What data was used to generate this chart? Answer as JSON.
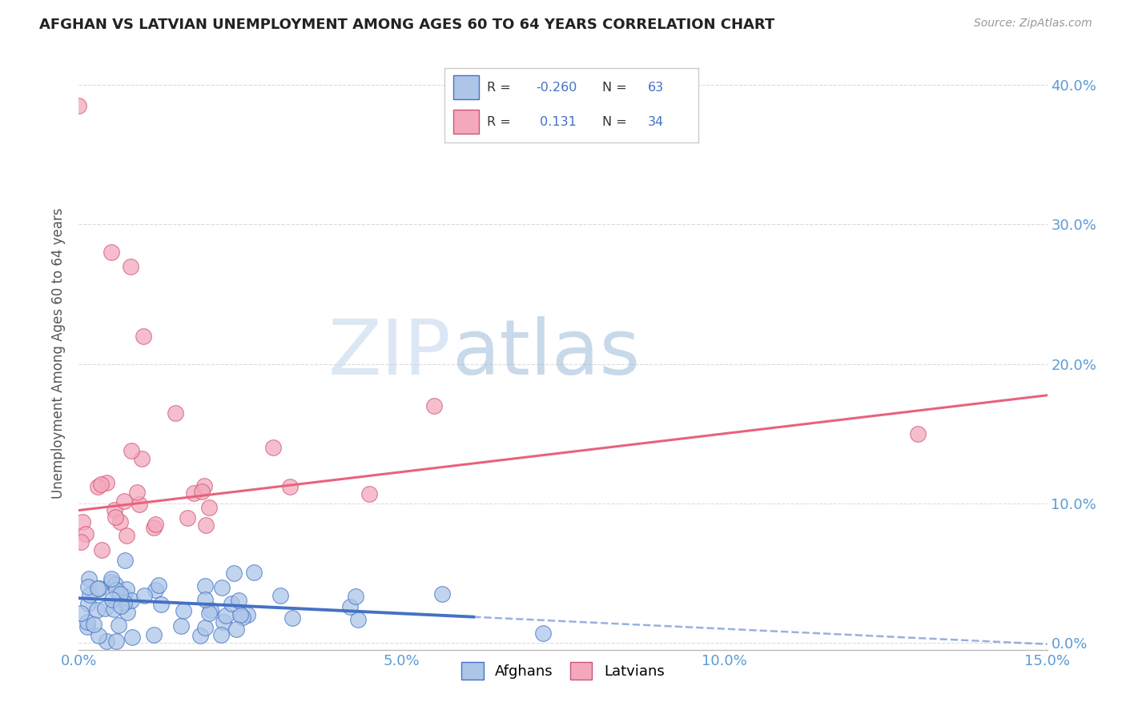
{
  "title": "AFGHAN VS LATVIAN UNEMPLOYMENT AMONG AGES 60 TO 64 YEARS CORRELATION CHART",
  "source": "Source: ZipAtlas.com",
  "ylabel": "Unemployment Among Ages 60 to 64 years",
  "xlim": [
    0.0,
    0.15
  ],
  "ylim": [
    -0.005,
    0.42
  ],
  "xticks": [
    0.0,
    0.05,
    0.1,
    0.15
  ],
  "yticks": [
    0.0,
    0.1,
    0.2,
    0.3,
    0.4
  ],
  "afghan_R": -0.26,
  "afghan_N": 63,
  "latvian_R": 0.131,
  "latvian_N": 34,
  "afghan_color": "#adc6e8",
  "latvian_color": "#f4a8bc",
  "afghan_line_color": "#4472C4",
  "latvian_line_color": "#e8637a",
  "grid_color": "#cccccc",
  "background_color": "#ffffff",
  "afghan_line_intercept": 0.032,
  "afghan_line_slope": -0.22,
  "latvian_line_intercept": 0.095,
  "latvian_line_slope": 0.55,
  "latvian_outlier_x": [
    0.0,
    0.005,
    0.008,
    0.01,
    0.015,
    0.055
  ],
  "latvian_outlier_y": [
    0.385,
    0.28,
    0.27,
    0.22,
    0.165,
    0.17
  ],
  "latvian_lone_x": [
    0.13
  ],
  "latvian_lone_y": [
    0.15
  ]
}
